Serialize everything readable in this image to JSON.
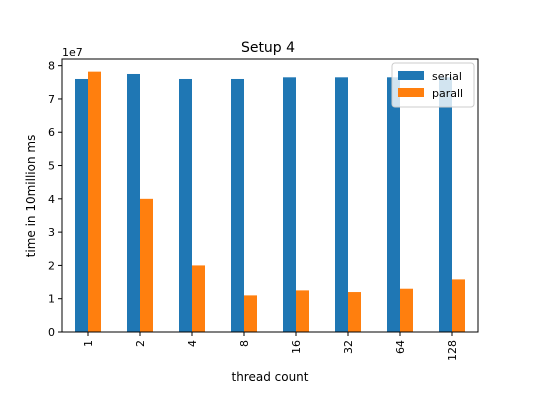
{
  "chart_data": {
    "type": "bar",
    "title": "Setup 4",
    "xlabel": "thread count",
    "ylabel": "time in 10million ms",
    "offset_text": "1e7",
    "categories": [
      "1",
      "2",
      "4",
      "8",
      "16",
      "32",
      "64",
      "128"
    ],
    "series": [
      {
        "name": "serial",
        "color": "#1f77b4",
        "values": [
          7.6,
          7.75,
          7.6,
          7.6,
          7.65,
          7.65,
          7.65,
          7.65
        ]
      },
      {
        "name": "parall",
        "color": "#ff7f0e",
        "values": [
          7.82,
          4.0,
          2.0,
          1.1,
          1.25,
          1.2,
          1.3,
          1.58
        ]
      }
    ],
    "yticks": [
      "0",
      "1",
      "2",
      "3",
      "4",
      "5",
      "6",
      "7",
      "8"
    ],
    "ylim": [
      0,
      8.2
    ],
    "legend_position": "top-right",
    "grid": false
  }
}
